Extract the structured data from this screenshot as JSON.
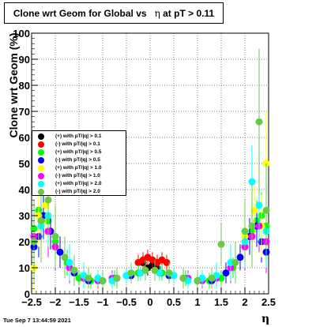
{
  "title": {
    "prefix": "Clone wrt Geom for Global vs",
    "symbol": "η",
    "suffix": "at pT > 0.11"
  },
  "timestamp": "Tue Sep  7 13:44:59 2021",
  "chart_data": {
    "type": "scatter",
    "xlabel": "η",
    "ylabel": "Clone wrt Geom (%)",
    "xlim": [
      -2.5,
      2.5
    ],
    "ylim": [
      0,
      100
    ],
    "x_ticks": [
      "−2.5",
      "−2",
      "−1.5",
      "−1",
      "−0.5",
      "0",
      "0.5",
      "1",
      "1.5",
      "2",
      "2.5"
    ],
    "y_ticks": [
      "0",
      "10",
      "20",
      "30",
      "40",
      "50",
      "60",
      "70",
      "80",
      "90",
      "100"
    ],
    "grid": true,
    "legend_placement": "left",
    "series": [
      {
        "name": "(+) with pT/|q| > 0.1",
        "color": "#000000",
        "x": [
          -0.15,
          -0.05,
          0.05,
          0.15
        ],
        "y": [
          12,
          10,
          11,
          10
        ],
        "err": [
          3,
          3,
          3,
          3
        ]
      },
      {
        "name": "(-) with pT/|q| > 0.1",
        "color": "#ff0000",
        "x": [
          -0.25,
          -0.15,
          -0.05,
          0.05,
          0.15,
          0.25,
          0.35
        ],
        "y": [
          12,
          13,
          14,
          13,
          12,
          13,
          12
        ],
        "err": [
          3,
          3,
          3,
          3,
          3,
          3,
          3
        ]
      },
      {
        "name": "(+) with pT/|q| > 0.5",
        "color": "#00ff00",
        "x": [
          -2.45,
          -2.35,
          -2.25,
          -2.15,
          -2.0,
          -1.75,
          -1.5,
          -1.25,
          -1.0,
          -0.75,
          -0.5,
          -0.25,
          0.25,
          0.5,
          0.75,
          1.0,
          1.25,
          1.5,
          1.75,
          2.0,
          2.15,
          2.25,
          2.35,
          2.45
        ],
        "y": [
          25,
          32,
          30,
          28,
          20,
          12,
          6,
          5,
          5,
          6,
          7,
          8,
          8,
          7,
          6,
          5,
          5,
          6,
          10,
          18,
          24,
          28,
          30,
          26
        ],
        "err": [
          10,
          9,
          9,
          8,
          6,
          5,
          3,
          3,
          3,
          3,
          3,
          3,
          3,
          3,
          3,
          3,
          3,
          3,
          4,
          6,
          7,
          8,
          9,
          10
        ]
      },
      {
        "name": "(-) with pT/|q| > 0.5",
        "color": "#0000ff",
        "x": [
          -2.45,
          -2.35,
          -2.25,
          -2.1,
          -1.9,
          -1.6,
          -1.3,
          -1.0,
          -0.7,
          -0.4,
          0.4,
          0.7,
          1.0,
          1.3,
          1.6,
          1.9,
          2.1,
          2.25,
          2.35,
          2.45
        ],
        "y": [
          18,
          22,
          30,
          24,
          16,
          8,
          5,
          5,
          6,
          7,
          7,
          6,
          5,
          5,
          8,
          14,
          22,
          26,
          20,
          16
        ],
        "err": [
          8,
          8,
          9,
          7,
          6,
          4,
          3,
          3,
          3,
          3,
          3,
          3,
          3,
          3,
          4,
          5,
          7,
          8,
          8,
          8
        ]
      },
      {
        "name": "(+) with pT/|q| > 1.0",
        "color": "#ffff00",
        "x": [
          -2.45,
          -2.35,
          -2.2,
          -2.0,
          -1.7,
          -1.4,
          -1.1,
          -0.8,
          -0.5,
          -0.2,
          0.2,
          0.5,
          0.8,
          1.1,
          1.4,
          1.7,
          2.0,
          2.2,
          2.35,
          2.45
        ],
        "y": [
          10,
          30,
          34,
          22,
          10,
          6,
          5,
          5,
          7,
          8,
          8,
          7,
          5,
          5,
          6,
          10,
          22,
          32,
          26,
          50
        ],
        "err": [
          12,
          12,
          12,
          10,
          6,
          4,
          3,
          3,
          3,
          3,
          3,
          3,
          3,
          3,
          4,
          6,
          10,
          12,
          12,
          20
        ]
      },
      {
        "name": "(-) with pT/|q| > 1.0",
        "color": "#ff00ff",
        "x": [
          -2.45,
          -2.3,
          -2.15,
          -2.0,
          -1.7,
          -1.4,
          -1.1,
          -0.8,
          -0.5,
          -0.2,
          0.2,
          0.5,
          0.8,
          1.1,
          1.4,
          1.7,
          2.0,
          2.15,
          2.3,
          2.45
        ],
        "y": [
          22,
          28,
          24,
          18,
          10,
          6,
          5,
          6,
          7,
          8,
          8,
          7,
          6,
          5,
          6,
          10,
          18,
          22,
          26,
          20
        ],
        "err": [
          12,
          10,
          10,
          9,
          6,
          4,
          3,
          3,
          3,
          3,
          3,
          3,
          3,
          3,
          4,
          6,
          9,
          10,
          10,
          12
        ]
      },
      {
        "name": "(+) with pT/|q| > 2.0",
        "color": "#00ffff",
        "x": [
          -2.45,
          -2.3,
          -2.15,
          -2.0,
          -1.7,
          -1.4,
          -1.1,
          -0.8,
          -0.5,
          -0.2,
          0.2,
          0.5,
          0.8,
          1.1,
          1.4,
          1.7,
          2.0,
          2.15,
          2.3,
          2.45
        ],
        "y": [
          20,
          26,
          30,
          22,
          12,
          7,
          6,
          5,
          7,
          8,
          8,
          7,
          5,
          6,
          7,
          12,
          20,
          43,
          34,
          24
        ],
        "err": [
          14,
          14,
          12,
          10,
          7,
          5,
          3,
          3,
          3,
          3,
          3,
          3,
          3,
          3,
          5,
          7,
          10,
          14,
          14,
          14
        ]
      },
      {
        "name": "(-) with pT/|q| > 2.0",
        "color": "#66cc44",
        "x": [
          -2.45,
          -2.3,
          -2.15,
          -2.0,
          -1.8,
          -1.6,
          -1.3,
          -1.0,
          -0.7,
          -0.4,
          -0.1,
          0.1,
          0.4,
          0.7,
          1.0,
          1.3,
          1.5,
          1.8,
          2.0,
          2.15,
          2.3,
          2.45
        ],
        "y": [
          20,
          28,
          36,
          22,
          14,
          9,
          6,
          5,
          6,
          8,
          9,
          9,
          8,
          6,
          5,
          6,
          19,
          12,
          24,
          26,
          66,
          32
        ],
        "err": [
          16,
          16,
          14,
          12,
          8,
          6,
          4,
          4,
          4,
          4,
          4,
          4,
          4,
          4,
          4,
          4,
          8,
          8,
          12,
          16,
          28,
          18
        ]
      }
    ]
  }
}
